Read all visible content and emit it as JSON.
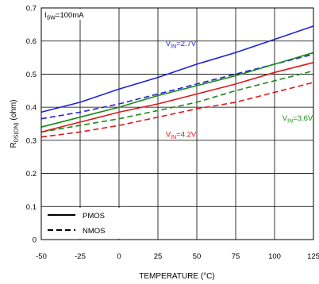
{
  "chart_data": {
    "type": "line",
    "title": "",
    "xlabel": "TEMPERATURE (°C)",
    "ylabel": "R",
    "ylabel_sub": "DS(ON)",
    "ylabel_unit": " (ohm)",
    "xlim": [
      -50,
      125
    ],
    "ylim": [
      0,
      0.7
    ],
    "x_ticks": [
      -50,
      -25,
      0,
      25,
      50,
      75,
      100,
      125
    ],
    "y_ticks": [
      0,
      0.1,
      0.2,
      0.3,
      0.4,
      0.5,
      0.6,
      0.7
    ],
    "y_tick_labels": [
      "0",
      "0.1",
      "0.2",
      "0.3",
      "0.4",
      "0.5",
      "0.6",
      "0.7"
    ],
    "grid": true,
    "legend": {
      "position": "bottom-left",
      "entries": [
        {
          "label": "PMOS",
          "style": "solid"
        },
        {
          "label": "NMOS",
          "style": "dashed"
        }
      ]
    },
    "condition": {
      "main": "I",
      "sub": "SW",
      "rest": "=100mA"
    },
    "annotations": [
      {
        "main": "V",
        "sub": "IN",
        "rest": "=2.7V",
        "color": "#2020d8",
        "x": 30,
        "y": 0.585
      },
      {
        "main": "V",
        "sub": "IN",
        "rest": "=3.6V",
        "color": "#1a8a1a",
        "x": 105,
        "y": 0.36
      },
      {
        "main": "V",
        "sub": "IN",
        "rest": "=4.2V",
        "color": "#e01818",
        "x": 30,
        "y": 0.31
      }
    ],
    "series": [
      {
        "color": "#2020d8",
        "style": "solid",
        "x": [
          -50,
          -25,
          0,
          25,
          50,
          75,
          100,
          125
        ],
        "values": [
          0.385,
          0.415,
          0.455,
          0.49,
          0.53,
          0.565,
          0.605,
          0.645
        ]
      },
      {
        "color": "#2020d8",
        "style": "dashed",
        "x": [
          -50,
          -25,
          0,
          25,
          50,
          75,
          100,
          125
        ],
        "values": [
          0.365,
          0.385,
          0.41,
          0.44,
          0.47,
          0.5,
          0.53,
          0.56
        ]
      },
      {
        "color": "#1a8a1a",
        "style": "solid",
        "x": [
          -50,
          -25,
          0,
          25,
          50,
          75,
          100,
          125
        ],
        "values": [
          0.34,
          0.37,
          0.4,
          0.435,
          0.465,
          0.495,
          0.53,
          0.565
        ]
      },
      {
        "color": "#1a8a1a",
        "style": "dashed",
        "x": [
          -50,
          -25,
          0,
          25,
          50,
          75,
          100,
          125
        ],
        "values": [
          0.325,
          0.345,
          0.365,
          0.39,
          0.415,
          0.45,
          0.48,
          0.51
        ]
      },
      {
        "color": "#e01818",
        "style": "solid",
        "x": [
          -50,
          -25,
          0,
          25,
          50,
          75,
          100,
          125
        ],
        "values": [
          0.325,
          0.355,
          0.385,
          0.41,
          0.44,
          0.47,
          0.505,
          0.535
        ]
      },
      {
        "color": "#e01818",
        "style": "dashed",
        "x": [
          -50,
          -25,
          0,
          25,
          50,
          75,
          100,
          125
        ],
        "values": [
          0.31,
          0.325,
          0.345,
          0.37,
          0.395,
          0.415,
          0.445,
          0.475
        ]
      }
    ]
  }
}
